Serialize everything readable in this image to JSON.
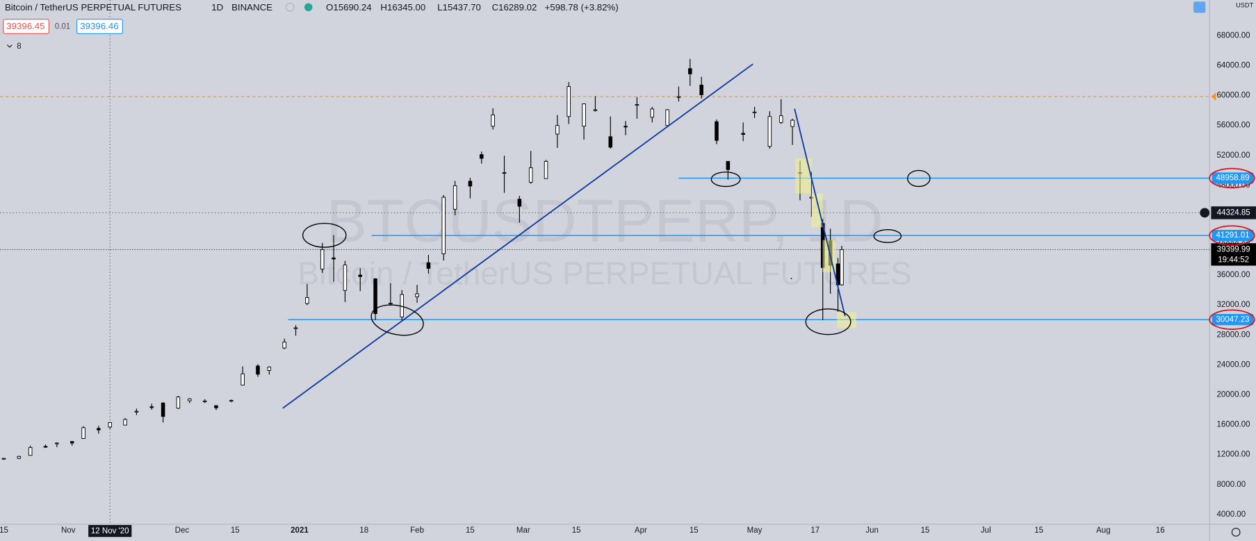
{
  "header": {
    "symbol": "Bitcoin / TetherUS PERPETUAL FUTURES",
    "interval": "1D",
    "exchange": "BINANCE",
    "open": "O15690.24",
    "high": "H16345.00",
    "low": "L15437.70",
    "close": "C16289.02",
    "change": "+598.78 (+3.82%)",
    "bid": 39396.45,
    "spread": 0.01,
    "ask": 39396.46,
    "indicators": 8,
    "watermark": "BTCUSDTPERP, 1D",
    "currency": "USDT"
  },
  "chart_data": {
    "type": "candlestick",
    "up_color": "#ffffff",
    "down_color": "#000000",
    "x": [
      "2020-10-15",
      "2020-10-19",
      "2020-10-22",
      "2020-10-26",
      "2020-10-29",
      "2020-11-02",
      "2020-11-05",
      "2020-11-09",
      "2020-11-12",
      "2020-11-16",
      "2020-11-19",
      "2020-11-23",
      "2020-11-26",
      "2020-11-30",
      "2020-12-03",
      "2020-12-07",
      "2020-12-10",
      "2020-12-14",
      "2020-12-17",
      "2020-12-21",
      "2020-12-24",
      "2020-12-28",
      "2020-12-31",
      "2021-01-03",
      "2021-01-07",
      "2021-01-10",
      "2021-01-13",
      "2021-01-17",
      "2021-01-21",
      "2021-01-25",
      "2021-01-28",
      "2021-02-01",
      "2021-02-04",
      "2021-02-08",
      "2021-02-11",
      "2021-02-15",
      "2021-02-18",
      "2021-02-21",
      "2021-02-24",
      "2021-02-28",
      "2021-03-03",
      "2021-03-07",
      "2021-03-10",
      "2021-03-13",
      "2021-03-17",
      "2021-03-20",
      "2021-03-24",
      "2021-03-28",
      "2021-03-31",
      "2021-04-04",
      "2021-04-08",
      "2021-04-11",
      "2021-04-14",
      "2021-04-17",
      "2021-04-21",
      "2021-04-24",
      "2021-04-28",
      "2021-05-01",
      "2021-05-05",
      "2021-05-08",
      "2021-05-11",
      "2021-05-13",
      "2021-05-16",
      "2021-05-19",
      "2021-05-21",
      "2021-05-23",
      "2021-05-24"
    ],
    "open": [
      11400,
      11500,
      11900,
      13100,
      13450,
      13750,
      14150,
      15500,
      15690.24,
      15950,
      17800,
      18400,
      18900,
      18200,
      19200,
      19150,
      18550,
      19150,
      21300,
      23850,
      23250,
      26250,
      28850,
      32200,
      36800,
      38300,
      33950,
      36000,
      35500,
      32250,
      30400,
      33100,
      37650,
      38850,
      44800,
      48550,
      52100,
      55900,
      49700,
      46150,
      48400,
      48900,
      54850,
      57200,
      55900,
      58100,
      54500,
      55900,
      58800,
      57100,
      56000,
      59800,
      63600,
      61400,
      56500,
      51200,
      54950,
      57700,
      53200,
      56400,
      55850,
      49600,
      46400,
      42900,
      40600,
      37500,
      34700
    ],
    "high": [
      11550,
      11850,
      13200,
      13350,
      13650,
      13800,
      15800,
      15850,
      16345,
      16900,
      18150,
      18800,
      19000,
      19850,
      19550,
      19400,
      18600,
      19350,
      23800,
      24100,
      23800,
      27500,
      29300,
      34800,
      40300,
      41350,
      37900,
      36900,
      35600,
      34900,
      34000,
      34700,
      38700,
      46700,
      48600,
      49000,
      52500,
      58300,
      51950,
      46600,
      52600,
      51400,
      57400,
      61800,
      58900,
      59900,
      57200,
      56600,
      59800,
      58500,
      58200,
      61200,
      64900,
      62500,
      56800,
      51200,
      56400,
      58500,
      57900,
      59500,
      56900,
      51300,
      49800,
      43500,
      42200,
      38300,
      39900
    ],
    "low": [
      11300,
      11400,
      11900,
      12900,
      13000,
      13200,
      14100,
      14800,
      15437.7,
      15900,
      17300,
      18000,
      16300,
      18100,
      18900,
      18900,
      17950,
      19000,
      21250,
      22400,
      22700,
      26100,
      27900,
      32000,
      36300,
      35100,
      32400,
      33850,
      30000,
      31900,
      29900,
      32300,
      36200,
      37950,
      44000,
      46250,
      50900,
      55450,
      47000,
      43000,
      48200,
      48900,
      53000,
      56200,
      54100,
      57850,
      52900,
      54700,
      56900,
      56400,
      55800,
      59200,
      61300,
      59600,
      53500,
      48750,
      53900,
      57000,
      52900,
      56200,
      53400,
      46000,
      43800,
      30000,
      33500,
      31100,
      34600
    ],
    "close": [
      11500,
      11750,
      12950,
      13050,
      13550,
      13550,
      15600,
      15300,
      16289.02,
      16700,
      17800,
      18350,
      17100,
      19700,
      19450,
      19180,
      18250,
      19250,
      22800,
      22750,
      23700,
      27050,
      28950,
      33000,
      39400,
      38150,
      37350,
      35800,
      30850,
      32250,
      33400,
      33500,
      36900,
      46400,
      47950,
      47900,
      51600,
      57400,
      49700,
      45200,
      50350,
      51200,
      56000,
      61200,
      58900,
      58100,
      53100,
      55800,
      58800,
      58200,
      58100,
      59850,
      62900,
      60100,
      54000,
      50100,
      54800,
      57800,
      57200,
      57300,
      56700,
      49700,
      46400,
      37000,
      37300,
      34700,
      39399.99
    ],
    "xlim": [
      "2020-10-14",
      "2021-08-29"
    ],
    "xticks": [
      {
        "value": "2020-10-15",
        "label": "15"
      },
      {
        "value": "2020-11-01",
        "label": "Nov"
      },
      {
        "value": "2020-12-01",
        "label": "Dec"
      },
      {
        "value": "2020-12-15",
        "label": "15"
      },
      {
        "value": "2021-01-01",
        "label": "2021"
      },
      {
        "value": "2021-01-18",
        "label": "18"
      },
      {
        "value": "2021-02-01",
        "label": "Feb"
      },
      {
        "value": "2021-02-15",
        "label": "15"
      },
      {
        "value": "2021-03-01",
        "label": "Mar"
      },
      {
        "value": "2021-03-15",
        "label": "15"
      },
      {
        "value": "2021-04-01",
        "label": "Apr"
      },
      {
        "value": "2021-04-15",
        "label": "15"
      },
      {
        "value": "2021-05-01",
        "label": "May"
      },
      {
        "value": "2021-05-17",
        "label": "17"
      },
      {
        "value": "2021-06-01",
        "label": "Jun"
      },
      {
        "value": "2021-06-15",
        "label": "15"
      },
      {
        "value": "2021-07-01",
        "label": "Jul"
      },
      {
        "value": "2021-07-15",
        "label": "15"
      },
      {
        "value": "2021-08-01",
        "label": "Aug"
      },
      {
        "value": "2021-08-16",
        "label": "16"
      }
    ],
    "ylim": [
      2700,
      72770
    ],
    "yticks": [
      {
        "value": 4000,
        "label": "4000.00"
      },
      {
        "value": 8000,
        "label": "8000.00"
      },
      {
        "value": 12000,
        "label": "12000.00"
      },
      {
        "value": 16000,
        "label": "16000.00"
      },
      {
        "value": 20000,
        "label": "20000.00"
      },
      {
        "value": 24000,
        "label": "24000.00"
      },
      {
        "value": 28000,
        "label": "28000.00"
      },
      {
        "value": 32000,
        "label": "32000.00"
      },
      {
        "value": 36000,
        "label": "36000.00"
      },
      {
        "value": 40000,
        "label": "40000.00"
      },
      {
        "value": 44000,
        "label": "44000.00"
      },
      {
        "value": 48000,
        "label": "48000.00"
      },
      {
        "value": 52000,
        "label": "52000.00"
      },
      {
        "value": 56000,
        "label": "56000.00"
      },
      {
        "value": 60000,
        "label": "60000.00"
      },
      {
        "value": 64000,
        "label": "64000.00"
      },
      {
        "value": 68000,
        "label": "68000.00"
      }
    ],
    "price_lines": [
      {
        "value": 48958.89,
        "from": "2021-04-11",
        "color": "#2196f3"
      },
      {
        "value": 41291.01,
        "from": "2021-01-20",
        "color": "#2196f3"
      },
      {
        "value": 30047.23,
        "from": "2020-12-29",
        "color": "#2196f3"
      }
    ],
    "alert_line": {
      "value": 59850,
      "color": "#f7931a"
    },
    "crosshair": {
      "x": "2020-11-12",
      "x_label": "12 Nov '20",
      "y": 44324.85
    },
    "last_price": {
      "value": 39399.99,
      "countdown": "19:44:52"
    }
  }
}
